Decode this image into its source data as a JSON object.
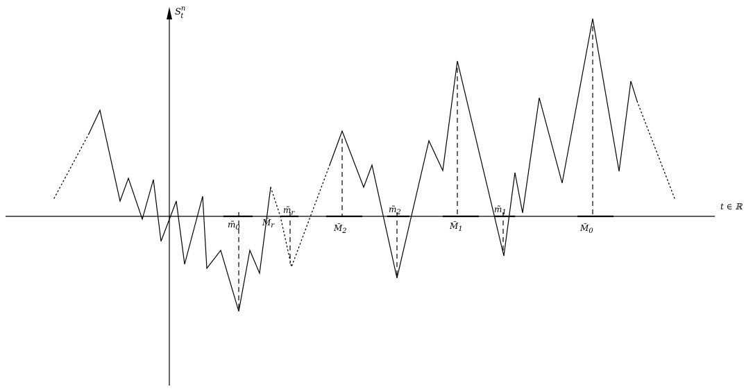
{
  "axes": {
    "y_label": "S",
    "y_label_sup": "n",
    "y_label_sub": "t",
    "x_label": "t ∈ ℝ"
  },
  "markers": [
    {
      "id": "m0",
      "base": "m̃",
      "sub": "0"
    },
    {
      "id": "Mr",
      "base": "M̃",
      "sub": "r"
    },
    {
      "id": "mr",
      "base": "m̃",
      "sub": "r"
    },
    {
      "id": "M2",
      "base": "M̃",
      "sub": "2"
    },
    {
      "id": "m2",
      "base": "m̃",
      "sub": "2"
    },
    {
      "id": "M1",
      "base": "M̃",
      "sub": "1"
    },
    {
      "id": "m1",
      "base": "m̃",
      "sub": "1"
    },
    {
      "id": "M0",
      "base": "M̃",
      "sub": "0"
    }
  ],
  "colors": {
    "stroke": "#000000"
  }
}
